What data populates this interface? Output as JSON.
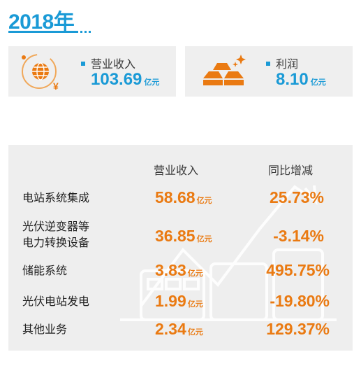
{
  "header": {
    "year": "2018年"
  },
  "cards": {
    "revenue": {
      "label": "营业收入",
      "value": "103.69",
      "unit": "亿元"
    },
    "profit": {
      "label": "利润",
      "value": "8.10",
      "unit": "亿元"
    }
  },
  "table": {
    "headers": {
      "revenue": "营业收入",
      "yoy": "同比增减"
    },
    "rows": [
      {
        "name_lines": [
          "电站系统集成"
        ],
        "value": "58.68",
        "unit": "亿元",
        "yoy": "25.73%"
      },
      {
        "name_lines": [
          "光伏逆变器等",
          "电力转换设备"
        ],
        "value": "36.85",
        "unit": "亿元",
        "yoy": "-3.14%"
      },
      {
        "name_lines": [
          "储能系统"
        ],
        "value": "3.83",
        "unit": "亿元",
        "yoy": "495.75%"
      },
      {
        "name_lines": [
          "光伏电站发电"
        ],
        "value": "1.99",
        "unit": "亿元",
        "yoy": "-19.80%"
      },
      {
        "name_lines": [
          "其他业务"
        ],
        "value": "2.34",
        "unit": "亿元",
        "yoy": "129.37%"
      }
    ]
  },
  "colors": {
    "accent_blue": "#1a9ad6",
    "accent_orange": "#ea7a12",
    "panel_gray": "#eeeeee"
  },
  "icons": {
    "revenue": "globe-yen-icon",
    "profit": "gold-bars-icon"
  }
}
